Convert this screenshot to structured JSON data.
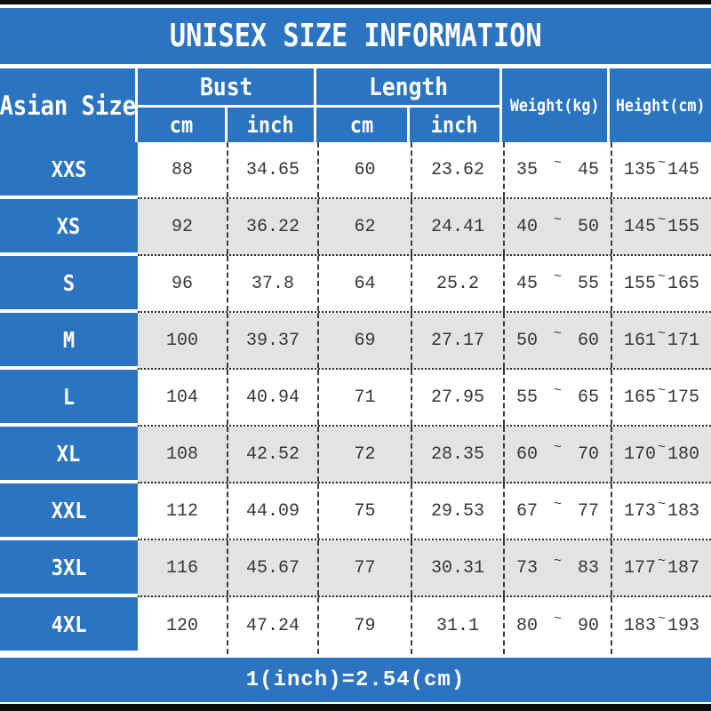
{
  "colors": {
    "header_blue": "#2b74c2",
    "row_alternate_gray": "#e4e3e1",
    "row_white": "#ffffff",
    "frame_bar_black": "#0c0c0c",
    "data_text": "#363636"
  },
  "chart_data": {
    "type": "table",
    "title": "UNISEX SIZE INFORMATION",
    "footnote": "1(inch)=2.54(cm)",
    "range_separator": "~",
    "column_groups": [
      {
        "label": "Asian Size"
      },
      {
        "label": "Bust",
        "sub": [
          "cm",
          "inch"
        ]
      },
      {
        "label": "Length",
        "sub": [
          "cm",
          "inch"
        ]
      },
      {
        "label": "Weight(kg)"
      },
      {
        "label": "Height(cm)"
      }
    ],
    "rows": [
      {
        "size": "XXS",
        "bust_cm": "88",
        "bust_inch": "34.65",
        "length_cm": "60",
        "length_inch": "23.62",
        "weight_min": "35",
        "weight_max": "45",
        "height_min": "135",
        "height_max": "145"
      },
      {
        "size": "XS",
        "bust_cm": "92",
        "bust_inch": "36.22",
        "length_cm": "62",
        "length_inch": "24.41",
        "weight_min": "40",
        "weight_max": "50",
        "height_min": "145",
        "height_max": "155"
      },
      {
        "size": "S",
        "bust_cm": "96",
        "bust_inch": "37.8",
        "length_cm": "64",
        "length_inch": "25.2",
        "weight_min": "45",
        "weight_max": "55",
        "height_min": "155",
        "height_max": "165"
      },
      {
        "size": "M",
        "bust_cm": "100",
        "bust_inch": "39.37",
        "length_cm": "69",
        "length_inch": "27.17",
        "weight_min": "50",
        "weight_max": "60",
        "height_min": "161",
        "height_max": "171"
      },
      {
        "size": "L",
        "bust_cm": "104",
        "bust_inch": "40.94",
        "length_cm": "71",
        "length_inch": "27.95",
        "weight_min": "55",
        "weight_max": "65",
        "height_min": "165",
        "height_max": "175"
      },
      {
        "size": "XL",
        "bust_cm": "108",
        "bust_inch": "42.52",
        "length_cm": "72",
        "length_inch": "28.35",
        "weight_min": "60",
        "weight_max": "70",
        "height_min": "170",
        "height_max": "180"
      },
      {
        "size": "XXL",
        "bust_cm": "112",
        "bust_inch": "44.09",
        "length_cm": "75",
        "length_inch": "29.53",
        "weight_min": "67",
        "weight_max": "77",
        "height_min": "173",
        "height_max": "183"
      },
      {
        "size": "3XL",
        "bust_cm": "116",
        "bust_inch": "45.67",
        "length_cm": "77",
        "length_inch": "30.31",
        "weight_min": "73",
        "weight_max": "83",
        "height_min": "177",
        "height_max": "187"
      },
      {
        "size": "4XL",
        "bust_cm": "120",
        "bust_inch": "47.24",
        "length_cm": "79",
        "length_inch": "31.1",
        "weight_min": "80",
        "weight_max": "90",
        "height_min": "183",
        "height_max": "193"
      }
    ]
  }
}
